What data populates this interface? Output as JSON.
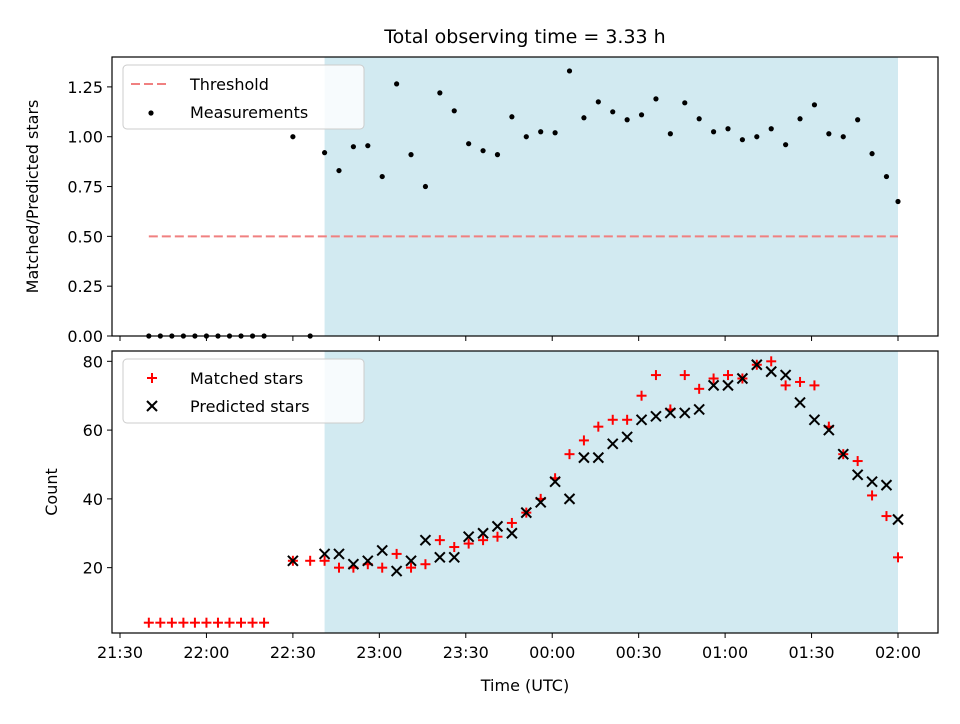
{
  "chart_data": [
    {
      "type": "scatter",
      "title": "Total observing time = 3.33 h",
      "ylabel": "Matched/Predicted stars",
      "xlabel": "",
      "ylim": [
        0,
        1.4
      ],
      "yticks": [
        "0.00",
        "0.25",
        "0.50",
        "0.75",
        "1.00",
        "1.25"
      ],
      "legend_position": "top-left",
      "shaded_interval": [
        "22:41",
        "02:00"
      ],
      "shade_color": "#add8e6",
      "threshold": {
        "name": "Threshold",
        "value": 0.5,
        "x_start": "21:40",
        "x_end": "02:00",
        "color": "#f08080"
      },
      "series": [
        {
          "name": "Measurements",
          "color": "#000000",
          "x": [
            "21:40",
            "21:44",
            "21:48",
            "21:52",
            "21:56",
            "22:00",
            "22:04",
            "22:08",
            "22:12",
            "22:16",
            "22:20",
            "22:30",
            "22:36",
            "22:41",
            "22:46",
            "22:51",
            "22:56",
            "23:01",
            "23:06",
            "23:11",
            "23:16",
            "23:21",
            "23:26",
            "23:31",
            "23:36",
            "23:41",
            "23:46",
            "23:51",
            "23:56",
            "00:01",
            "00:06",
            "00:11",
            "00:16",
            "00:21",
            "00:26",
            "00:31",
            "00:36",
            "00:41",
            "00:46",
            "00:51",
            "00:56",
            "01:01",
            "01:06",
            "01:11",
            "01:16",
            "01:21",
            "01:26",
            "01:31",
            "01:36",
            "01:41",
            "01:46",
            "01:51",
            "01:56",
            "02:00"
          ],
          "values": [
            0,
            0,
            0,
            0,
            0,
            0,
            0,
            0,
            0,
            0,
            0,
            1.0,
            0,
            0.92,
            0.83,
            0.95,
            0.955,
            0.8,
            1.265,
            0.91,
            0.75,
            1.22,
            1.13,
            0.965,
            0.93,
            0.91,
            1.1,
            1.0,
            1.025,
            1.02,
            1.33,
            1.095,
            1.175,
            1.125,
            1.085,
            1.11,
            1.19,
            1.015,
            1.17,
            1.09,
            1.025,
            1.04,
            0.985,
            1.0,
            1.04,
            0.96,
            1.09,
            1.16,
            1.015,
            1.0,
            1.085,
            0.915,
            0.8,
            0.675
          ]
        }
      ]
    },
    {
      "type": "scatter",
      "title": "",
      "ylabel": "Count",
      "xlabel": "Time (UTC)",
      "ylim": [
        1,
        83
      ],
      "yticks": [
        "20",
        "40",
        "60",
        "80"
      ],
      "xticks": [
        "21:30",
        "22:00",
        "22:30",
        "23:00",
        "23:30",
        "00:00",
        "00:30",
        "01:00",
        "01:30",
        "02:00"
      ],
      "legend_position": "top-left",
      "shaded_interval": [
        "22:41",
        "02:00"
      ],
      "shade_color": "#add8e6",
      "series": [
        {
          "name": "Matched stars",
          "color": "#ff0000",
          "x": [
            "21:40",
            "21:44",
            "21:48",
            "21:52",
            "21:56",
            "22:00",
            "22:04",
            "22:08",
            "22:12",
            "22:16",
            "22:20",
            "22:30",
            "22:36",
            "22:41",
            "22:46",
            "22:51",
            "22:56",
            "23:01",
            "23:06",
            "23:11",
            "23:16",
            "23:21",
            "23:26",
            "23:31",
            "23:36",
            "23:41",
            "23:46",
            "23:51",
            "23:56",
            "00:01",
            "00:06",
            "00:11",
            "00:16",
            "00:21",
            "00:26",
            "00:31",
            "00:36",
            "00:41",
            "00:46",
            "00:51",
            "00:56",
            "01:01",
            "01:06",
            "01:11",
            "01:16",
            "01:21",
            "01:26",
            "01:31",
            "01:36",
            "01:41",
            "01:46",
            "01:51",
            "01:56",
            "02:00"
          ],
          "values": [
            4,
            4,
            4,
            4,
            4,
            4,
            4,
            4,
            4,
            4,
            4,
            22,
            22,
            22,
            20,
            20,
            21,
            20,
            24,
            20,
            21,
            28,
            26,
            27,
            28,
            29,
            33,
            36,
            40,
            46,
            53,
            57,
            61,
            63,
            63,
            70,
            76,
            66,
            76,
            72,
            75,
            76,
            75,
            79,
            80,
            73,
            74,
            73,
            61,
            53,
            51,
            41,
            35,
            23
          ]
        },
        {
          "name": "Predicted stars",
          "color": "#000000",
          "x": [
            "22:30",
            "22:41",
            "22:46",
            "22:51",
            "22:56",
            "23:01",
            "23:06",
            "23:11",
            "23:16",
            "23:21",
            "23:26",
            "23:31",
            "23:36",
            "23:41",
            "23:46",
            "23:51",
            "23:56",
            "00:01",
            "00:06",
            "00:11",
            "00:16",
            "00:21",
            "00:26",
            "00:31",
            "00:36",
            "00:41",
            "00:46",
            "00:51",
            "00:56",
            "01:01",
            "01:06",
            "01:11",
            "01:16",
            "01:21",
            "01:26",
            "01:31",
            "01:36",
            "01:41",
            "01:46",
            "01:51",
            "01:56",
            "02:00"
          ],
          "values": [
            22,
            24,
            24,
            21,
            22,
            25,
            19,
            22,
            28,
            23,
            23,
            29,
            30,
            32,
            30,
            36,
            39,
            45,
            40,
            52,
            52,
            56,
            58,
            63,
            64,
            65,
            65,
            66,
            73,
            73,
            75,
            79,
            77,
            76,
            68,
            63,
            60,
            53,
            47,
            45,
            44,
            34
          ]
        }
      ]
    }
  ]
}
